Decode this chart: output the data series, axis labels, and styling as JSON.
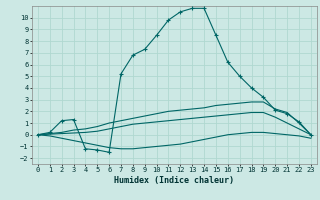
{
  "xlabel": "Humidex (Indice chaleur)",
  "bg_color": "#cce8e4",
  "grid_color": "#b0d8d0",
  "line_color": "#006666",
  "xlim": [
    -0.5,
    23.5
  ],
  "ylim": [
    -2.5,
    11.0
  ],
  "xticks": [
    0,
    1,
    2,
    3,
    4,
    5,
    6,
    7,
    8,
    9,
    10,
    11,
    12,
    13,
    14,
    15,
    16,
    17,
    18,
    19,
    20,
    21,
    22,
    23
  ],
  "yticks": [
    -2,
    -1,
    0,
    1,
    2,
    3,
    4,
    5,
    6,
    7,
    8,
    9,
    10
  ],
  "curve1_x": [
    0,
    1,
    2,
    3,
    4,
    5,
    6,
    7,
    8,
    9,
    10,
    11,
    12,
    13,
    14,
    15,
    16,
    17,
    18,
    19,
    20,
    21,
    22,
    23
  ],
  "curve1_y": [
    0.0,
    0.2,
    1.2,
    1.3,
    -1.2,
    -1.3,
    -1.5,
    5.2,
    6.8,
    7.3,
    8.5,
    9.8,
    10.5,
    10.8,
    10.8,
    8.5,
    6.2,
    5.0,
    4.0,
    3.2,
    2.1,
    1.8,
    1.1,
    0.0
  ],
  "curve2_x": [
    0,
    1,
    2,
    3,
    4,
    5,
    6,
    7,
    8,
    9,
    10,
    11,
    12,
    13,
    14,
    15,
    16,
    17,
    18,
    19,
    20,
    21,
    22,
    23
  ],
  "curve2_y": [
    0.0,
    0.1,
    0.2,
    0.4,
    0.5,
    0.7,
    1.0,
    1.2,
    1.4,
    1.6,
    1.8,
    2.0,
    2.1,
    2.2,
    2.3,
    2.5,
    2.6,
    2.7,
    2.8,
    2.8,
    2.2,
    1.9,
    1.0,
    0.0
  ],
  "curve3_x": [
    0,
    1,
    2,
    3,
    4,
    5,
    6,
    7,
    8,
    9,
    10,
    11,
    12,
    13,
    14,
    15,
    16,
    17,
    18,
    19,
    20,
    21,
    22,
    23
  ],
  "curve3_y": [
    0.0,
    0.05,
    0.1,
    0.15,
    0.2,
    0.3,
    0.5,
    0.7,
    0.9,
    1.0,
    1.1,
    1.2,
    1.3,
    1.4,
    1.5,
    1.6,
    1.7,
    1.8,
    1.9,
    1.9,
    1.5,
    1.0,
    0.5,
    0.0
  ],
  "curve4_x": [
    0,
    1,
    2,
    3,
    4,
    5,
    6,
    7,
    8,
    9,
    10,
    11,
    12,
    13,
    14,
    15,
    16,
    17,
    18,
    19,
    20,
    21,
    22,
    23
  ],
  "curve4_y": [
    0.0,
    -0.1,
    -0.3,
    -0.5,
    -0.7,
    -0.9,
    -1.1,
    -1.2,
    -1.2,
    -1.1,
    -1.0,
    -0.9,
    -0.8,
    -0.6,
    -0.4,
    -0.2,
    0.0,
    0.1,
    0.2,
    0.2,
    0.1,
    0.0,
    -0.1,
    -0.3
  ]
}
